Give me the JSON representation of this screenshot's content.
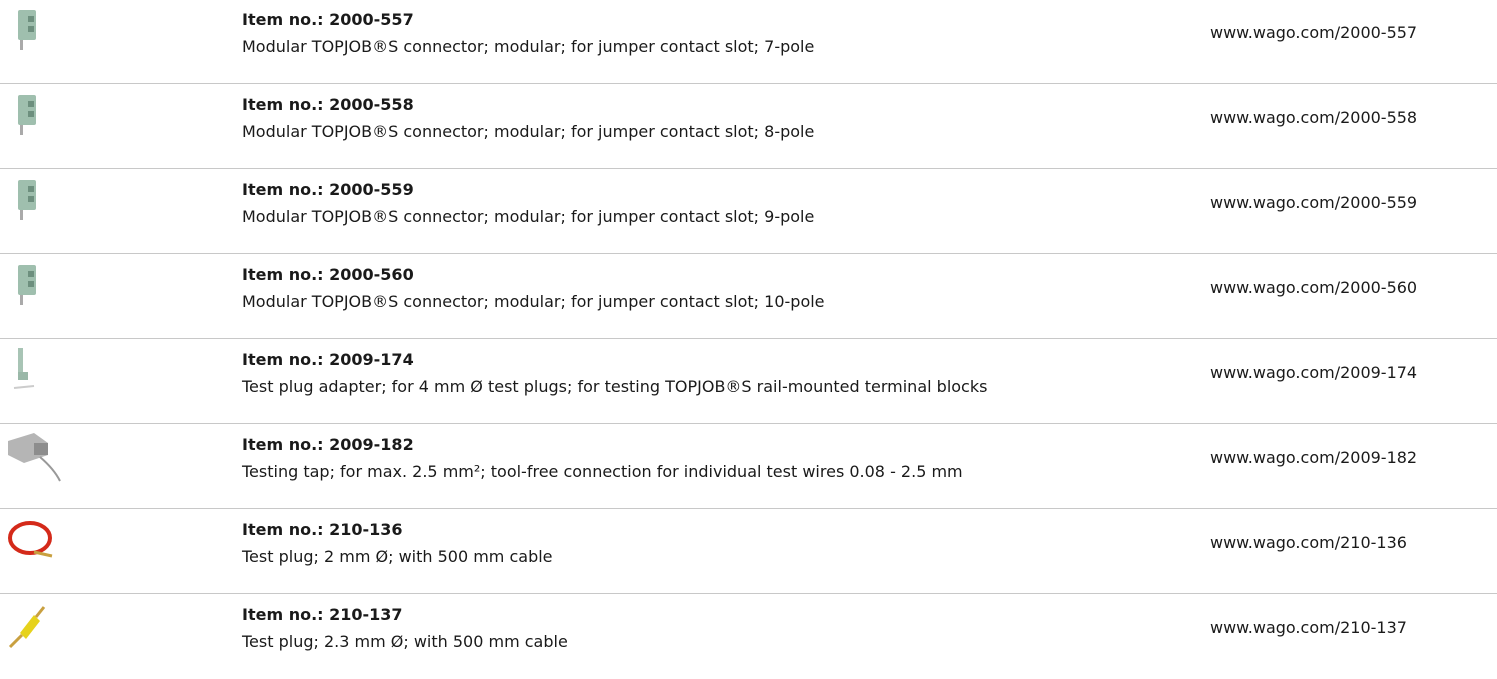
{
  "rows": [
    {
      "item": "Item no.: 2000-557",
      "description": "Modular TOPJOB®S connector; modular; for jumper contact slot; 7-pole",
      "url": "www.wago.com/2000-557"
    },
    {
      "item": "Item no.: 2000-558",
      "description": "Modular TOPJOB®S connector; modular; for jumper contact slot; 8-pole",
      "url": "www.wago.com/2000-558"
    },
    {
      "item": "Item no.: 2000-559",
      "description": "Modular TOPJOB®S connector; modular; for jumper contact slot; 9-pole",
      "url": "www.wago.com/2000-559"
    },
    {
      "item": "Item no.: 2000-560",
      "description": "Modular TOPJOB®S connector; modular; for jumper contact slot; 10-pole",
      "url": "www.wago.com/2000-560"
    },
    {
      "item": "Item no.: 2009-174",
      "description": "Test plug adapter; for 4 mm Ø test plugs; for testing TOPJOB®S rail-mounted terminal blocks",
      "url": "www.wago.com/2009-174"
    },
    {
      "item": "Item no.: 2009-182",
      "description": "Testing tap; for max. 2.5 mm²; tool-free connection for individual test wires 0.08 - 2.5 mm",
      "url": "www.wago.com/2009-182"
    },
    {
      "item": "Item no.: 210-136",
      "description": "Test plug; 2 mm Ø; with 500 mm cable",
      "url": "www.wago.com/210-136"
    },
    {
      "item": "Item no.: 210-137",
      "description": "Test plug; 2.3 mm Ø; with 500 mm cable",
      "url": "www.wago.com/210-137"
    }
  ]
}
